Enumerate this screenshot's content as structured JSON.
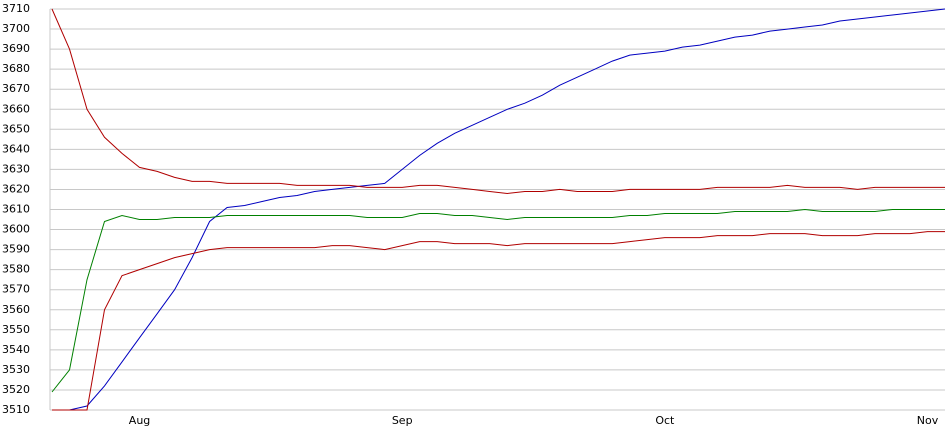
{
  "chart_data": {
    "type": "line",
    "categories": [
      null,
      null,
      null,
      null,
      null,
      "Aug",
      null,
      null,
      null,
      null,
      null,
      null,
      null,
      null,
      null,
      null,
      null,
      null,
      null,
      null,
      "Sep",
      null,
      null,
      null,
      null,
      null,
      null,
      null,
      null,
      null,
      null,
      null,
      null,
      null,
      null,
      "Oct",
      null,
      null,
      null,
      null,
      null,
      null,
      null,
      null,
      null,
      null,
      null,
      null,
      null,
      null,
      "Nov",
      null
    ],
    "series": [
      {
        "color": "#0000c0",
        "values": [
          3510,
          3510,
          3512,
          3522,
          3534,
          3546,
          3558,
          3570,
          3586,
          3604,
          3611,
          3612,
          3614,
          3616,
          3617,
          3619,
          3620,
          3621,
          3622,
          3623,
          3630,
          3637,
          3643,
          3648,
          3652,
          3656,
          3660,
          3663,
          3667,
          3672,
          3676,
          3680,
          3684,
          3687,
          3688,
          3689,
          3691,
          3692,
          3694,
          3696,
          3697,
          3699,
          3700,
          3701,
          3702,
          3704,
          3705,
          3706,
          3707,
          3708,
          3709,
          3710
        ]
      },
      {
        "color": "#b00000",
        "values": [
          3710,
          3690,
          3660,
          3646,
          3638,
          3631,
          3629,
          3626,
          3624,
          3624,
          3623,
          3623,
          3623,
          3623,
          3622,
          3622,
          3622,
          3622,
          3621,
          3621,
          3621,
          3622,
          3622,
          3621,
          3620,
          3619,
          3618,
          3619,
          3619,
          3620,
          3619,
          3619,
          3619,
          3620,
          3620,
          3620,
          3620,
          3620,
          3621,
          3621,
          3621,
          3621,
          3622,
          3621,
          3621,
          3621,
          3620,
          3621,
          3621,
          3621,
          3621,
          3621
        ]
      },
      {
        "color": "#008000",
        "values": [
          3519,
          3530,
          3575,
          3604,
          3607,
          3605,
          3605,
          3606,
          3606,
          3606,
          3607,
          3607,
          3607,
          3607,
          3607,
          3607,
          3607,
          3607,
          3606,
          3606,
          3606,
          3608,
          3608,
          3607,
          3607,
          3606,
          3605,
          3606,
          3606,
          3606,
          3606,
          3606,
          3606,
          3607,
          3607,
          3608,
          3608,
          3608,
          3608,
          3609,
          3609,
          3609,
          3609,
          3610,
          3609,
          3609,
          3609,
          3609,
          3610,
          3610,
          3610,
          3610
        ]
      },
      {
        "color": "#b00000",
        "values": [
          3510,
          3510,
          3510,
          3560,
          3577,
          3580,
          3583,
          3586,
          3588,
          3590,
          3591,
          3591,
          3591,
          3591,
          3591,
          3591,
          3592,
          3592,
          3591,
          3590,
          3592,
          3594,
          3594,
          3593,
          3593,
          3593,
          3592,
          3593,
          3593,
          3593,
          3593,
          3593,
          3593,
          3594,
          3595,
          3596,
          3596,
          3596,
          3597,
          3597,
          3597,
          3598,
          3598,
          3598,
          3597,
          3597,
          3597,
          3598,
          3598,
          3598,
          3599,
          3599
        ]
      }
    ],
    "ylim": [
      3510,
      3710
    ],
    "yticks": [
      3510,
      3520,
      3530,
      3540,
      3550,
      3560,
      3570,
      3580,
      3590,
      3600,
      3610,
      3620,
      3630,
      3640,
      3650,
      3660,
      3670,
      3680,
      3690,
      3700,
      3710
    ],
    "grid": true
  }
}
